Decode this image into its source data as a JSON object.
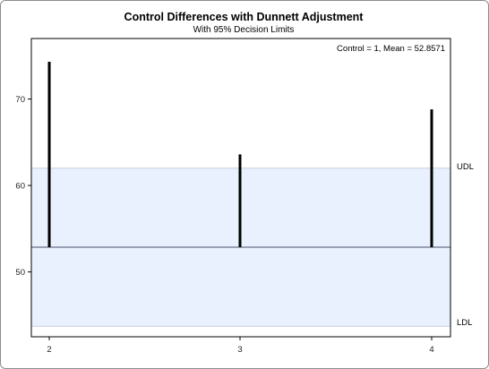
{
  "chart_data": {
    "type": "bar",
    "title": "Control Differences with Dunnett Adjustment",
    "subtitle": "With 95% Decision Limits",
    "inset_text": "Control = 1, Mean = 52.8571",
    "control_mean": 52.8571,
    "udl": 62.0,
    "ldl": 43.7,
    "udl_label": "UDL",
    "ldl_label": "LDL",
    "categories": [
      "2",
      "3",
      "4"
    ],
    "values": [
      74.3,
      63.6,
      68.8
    ],
    "yticks": [
      50,
      60,
      70
    ],
    "ylim": [
      42.5,
      77.0
    ],
    "grid": false,
    "colors": {
      "band_fill": "#e8f1fd",
      "band_edge": "#c8cede",
      "reference_line": "#9aa0b4",
      "bars": "#000000",
      "axis": "#000000"
    }
  }
}
